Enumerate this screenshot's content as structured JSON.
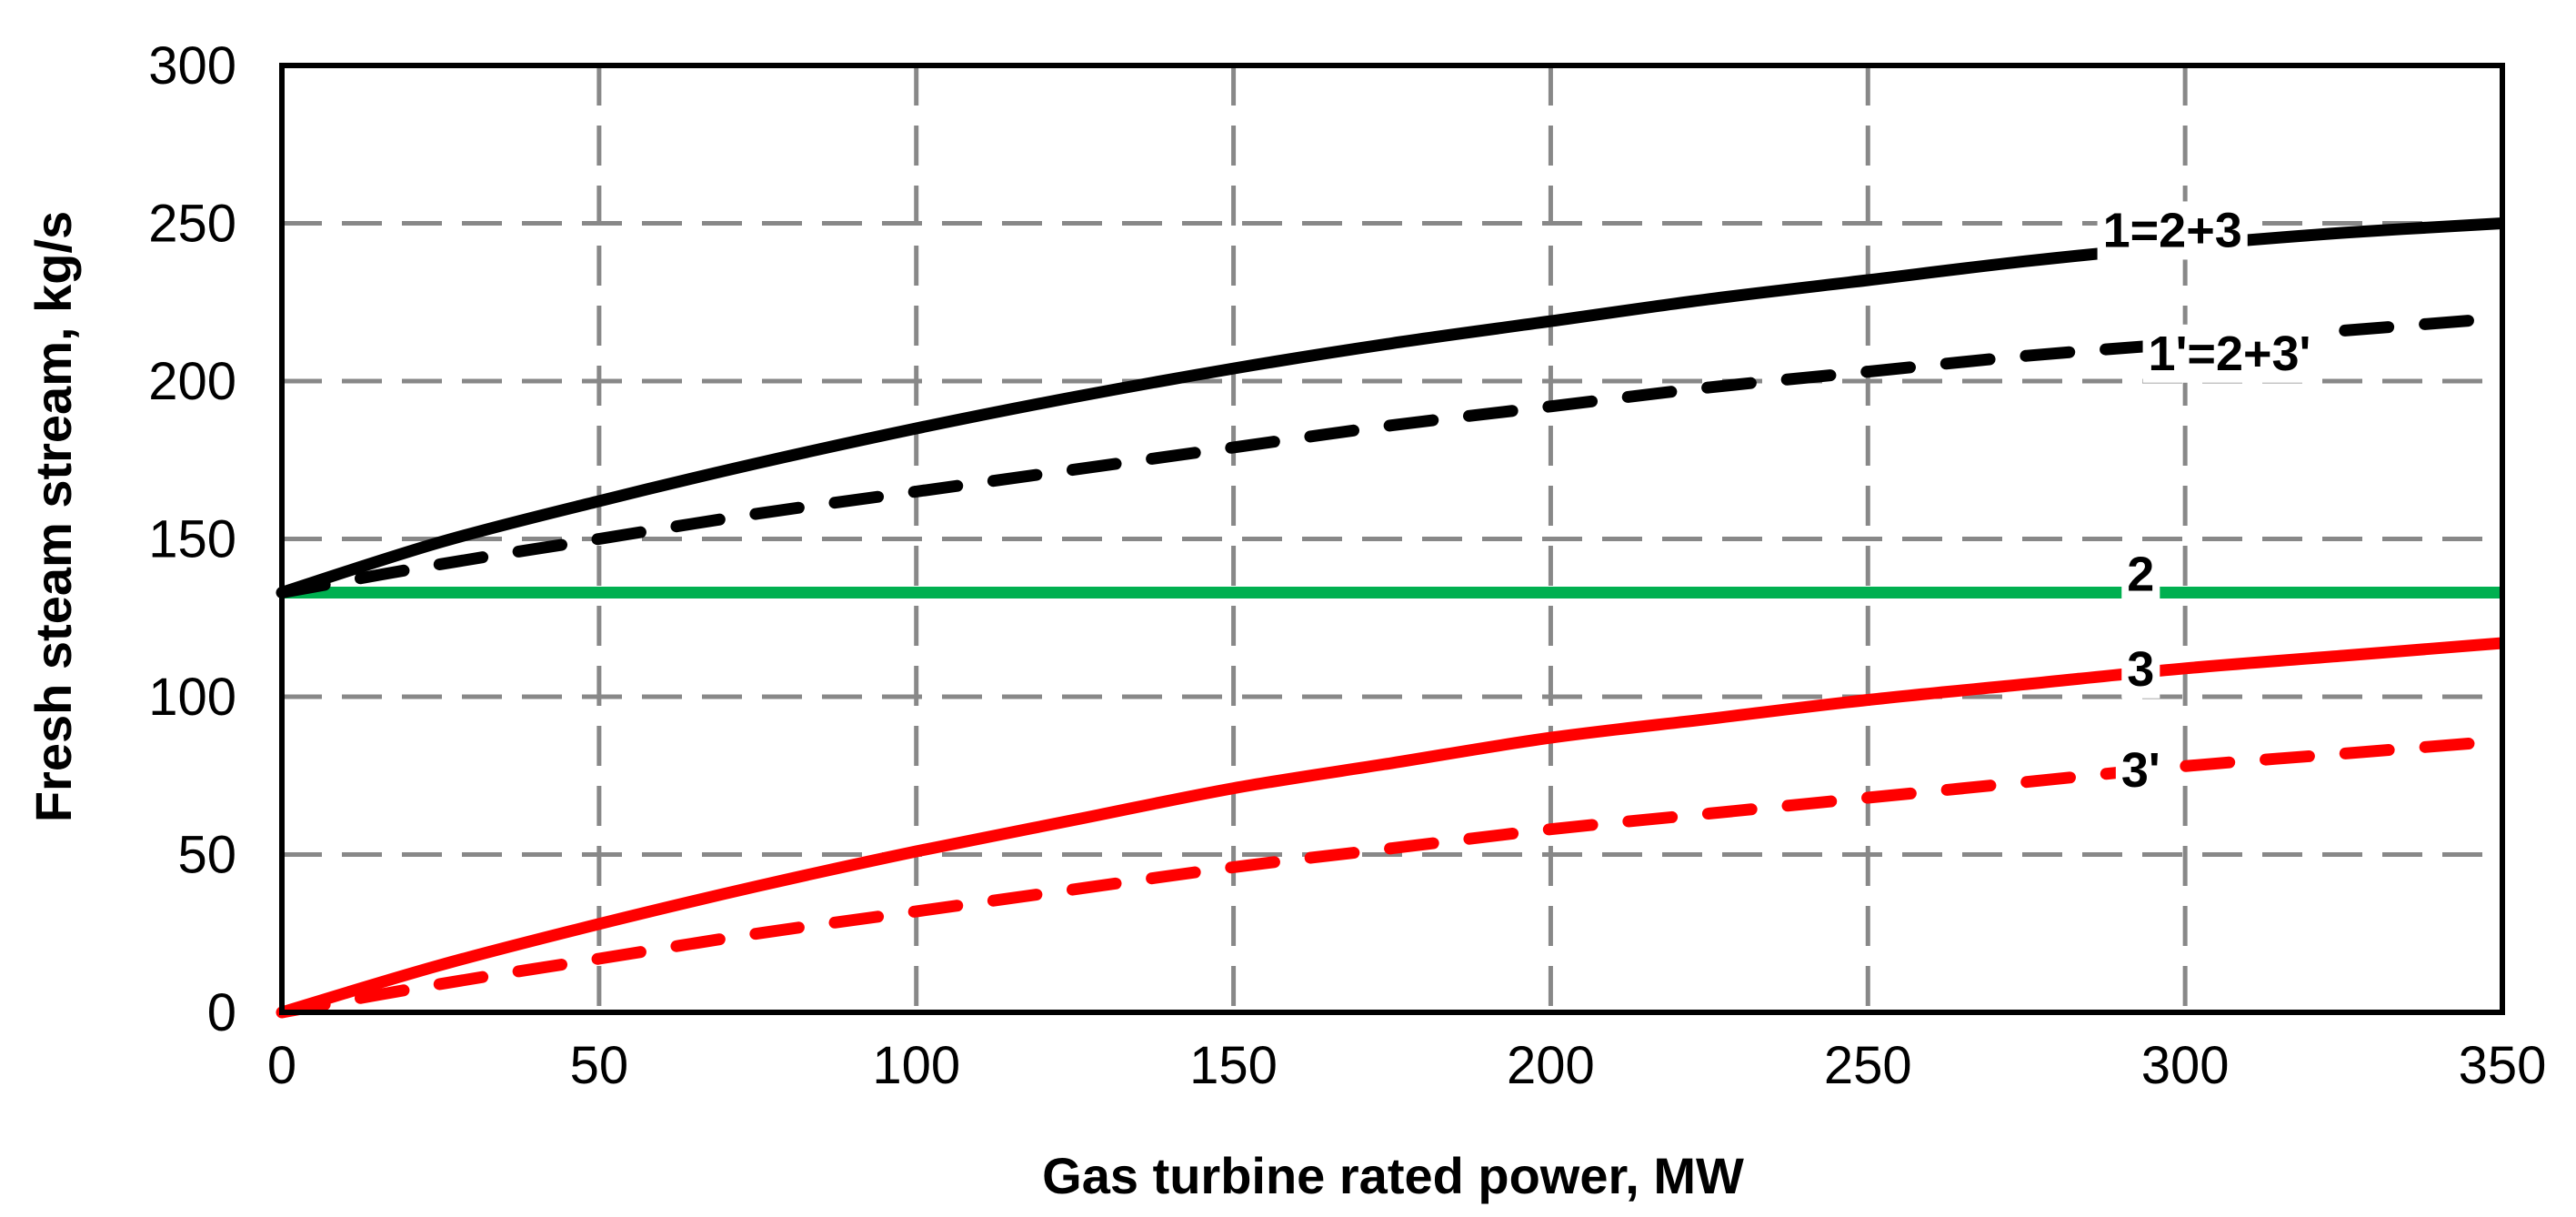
{
  "chart_data": {
    "type": "line",
    "title": "",
    "xlabel": "Gas turbine rated power, MW",
    "ylabel": "Fresh steam stream, kg/s",
    "xlim": [
      0,
      350
    ],
    "ylim": [
      0,
      300
    ],
    "xticks": [
      0,
      50,
      100,
      150,
      200,
      250,
      300,
      350
    ],
    "yticks": [
      0,
      50,
      100,
      150,
      200,
      250,
      300
    ],
    "grid": true,
    "x": [
      0,
      25,
      50,
      75,
      100,
      125,
      150,
      175,
      200,
      225,
      250,
      275,
      300,
      325,
      350
    ],
    "series": [
      {
        "name": "1=2+3",
        "color": "#000000",
        "style": "solid",
        "values": [
          133,
          149,
          162,
          174,
          185,
          195,
          204,
          212,
          219,
          226,
          232,
          238,
          243,
          247,
          250
        ]
      },
      {
        "name": "1'=2+3'",
        "color": "#000000",
        "style": "dashed",
        "values": [
          133,
          142,
          150,
          158,
          165,
          172,
          179,
          186,
          192,
          198,
          203,
          208,
          212,
          216,
          220
        ]
      },
      {
        "name": "2",
        "color": "#00b050",
        "style": "solid",
        "values": [
          133,
          133,
          133,
          133,
          133,
          133,
          133,
          133,
          133,
          133,
          133,
          133,
          133,
          133,
          133
        ]
      },
      {
        "name": "3",
        "color": "#ff0000",
        "style": "solid",
        "values": [
          0,
          15,
          28,
          40,
          51,
          61,
          71,
          79,
          87,
          93,
          99,
          104,
          109,
          113,
          117
        ]
      },
      {
        "name": "3'",
        "color": "#ff0000",
        "style": "dashed",
        "values": [
          0,
          9,
          17,
          25,
          32,
          39,
          46,
          52,
          58,
          63,
          68,
          73,
          78,
          82,
          86
        ]
      }
    ],
    "annotations": [
      {
        "text": "1=2+3",
        "x": 298,
        "y": 248,
        "series": "1=2+3"
      },
      {
        "text": "1'=2+3'",
        "x": 307,
        "y": 209,
        "series": "1'=2+3'"
      },
      {
        "text": "2",
        "x": 293,
        "y": 139,
        "series": "2"
      },
      {
        "text": "3",
        "x": 293,
        "y": 109,
        "series": "3"
      },
      {
        "text": "3'",
        "x": 293,
        "y": 77,
        "series": "3'"
      }
    ]
  }
}
